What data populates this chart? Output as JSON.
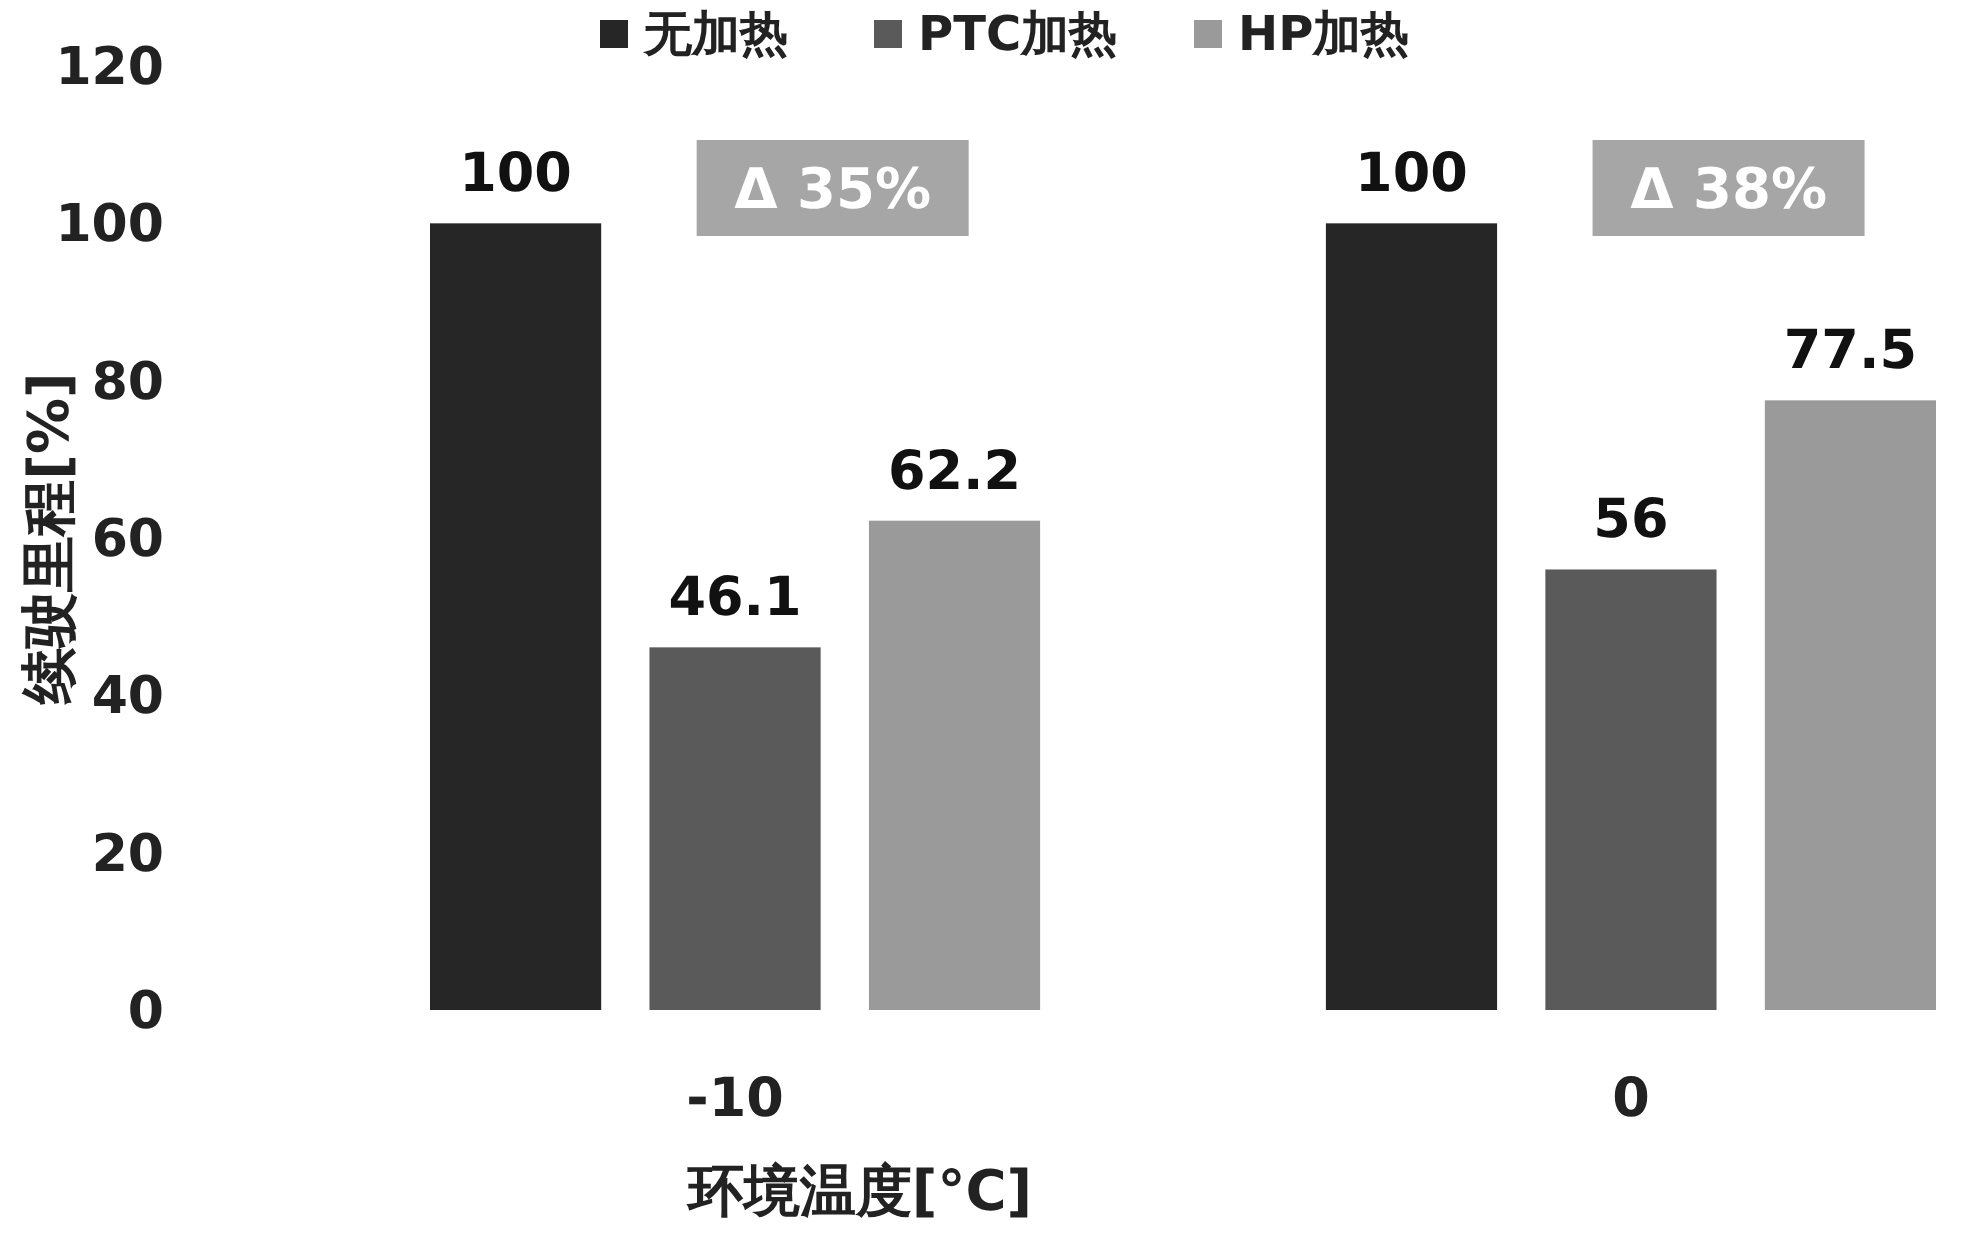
{
  "chart_data": {
    "type": "bar",
    "xlabel": "环境温度[°C]",
    "ylabel": "续驶里程[%]",
    "categories": [
      "-10",
      "0"
    ],
    "series": [
      {
        "name": "无加热",
        "color": "#262626",
        "values": [
          100,
          100
        ]
      },
      {
        "name": "PTC加热",
        "color": "#5a5a5a",
        "values": [
          46.1,
          56
        ]
      },
      {
        "name": "HP加热",
        "color": "#9a9a9a",
        "values": [
          62.2,
          77.5
        ]
      }
    ],
    "ylim": [
      0,
      120
    ],
    "yticks": [
      0,
      20,
      40,
      60,
      80,
      100,
      120
    ],
    "legend": "top",
    "data_labels": true,
    "annotations": [
      "Δ 35%",
      "Δ 38%"
    ]
  }
}
